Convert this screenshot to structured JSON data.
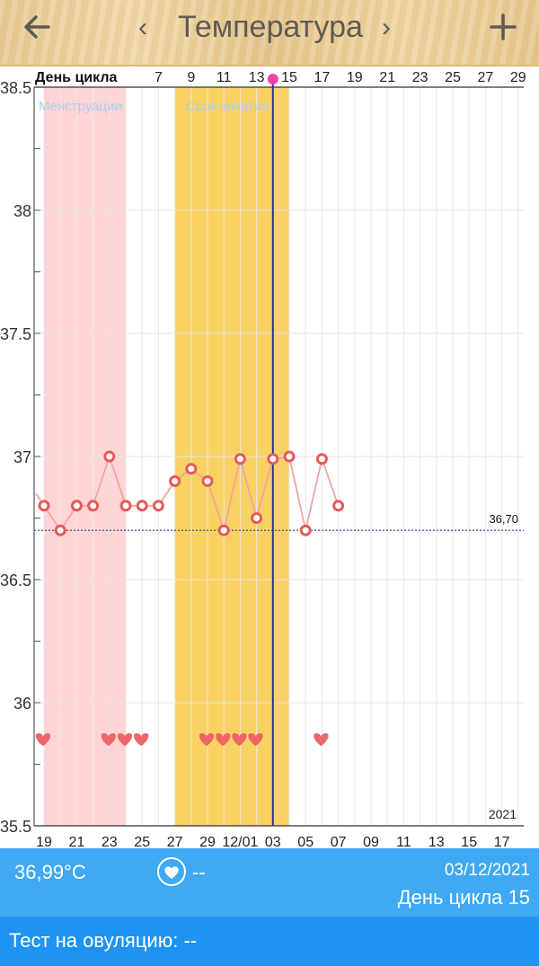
{
  "header": {
    "title": "Температура",
    "back_icon": "arrow-left-icon",
    "prev_icon": "chevron-left-icon",
    "next_icon": "chevron-right-icon",
    "add_icon": "plus-icon",
    "prev_glyph": "‹",
    "next_glyph": "›"
  },
  "colors": {
    "menstruation": "#ffd4d4",
    "fertile": "#fad264",
    "line": "#f0a5a5",
    "marker": "#e55a5a",
    "heart": "#ee6666",
    "cursor": "#2d2c9b",
    "cursor_dot": "#ee44aa",
    "info_bar": "#3fa9f3",
    "test_bar": "#1e93f1"
  },
  "chart_data": {
    "type": "line",
    "top_axis_title": "День цикла",
    "top_tick_labels": [
      "7",
      "9",
      "11",
      "13",
      "15",
      "17",
      "19",
      "21",
      "23",
      "25",
      "27",
      "29"
    ],
    "bottom_tick_labels": [
      "19",
      "21",
      "23",
      "25",
      "27",
      "29",
      "12/01",
      "03",
      "05",
      "07",
      "09",
      "11",
      "13",
      "15",
      "17"
    ],
    "ylim": [
      35.5,
      38.5
    ],
    "y_ticks": [
      "38.5",
      "38",
      "37.5",
      "37",
      "36.5",
      "36",
      "35.5"
    ],
    "xlim": [
      -0.5,
      29
    ],
    "series": [
      {
        "x": [
          -0.5,
          0,
          1,
          2,
          3,
          4,
          5,
          6,
          7,
          8,
          9,
          10,
          11,
          12,
          13,
          14,
          15,
          16,
          17,
          18
        ],
        "values": [
          36.85,
          36.8,
          36.7,
          36.8,
          36.8,
          37.0,
          36.8,
          36.8,
          36.8,
          36.9,
          36.95,
          36.9,
          36.7,
          36.99,
          36.75,
          36.99,
          37.0,
          36.7,
          36.99,
          36.8
        ],
        "marker_from_index": 1
      }
    ],
    "baseline": {
      "value": 36.7,
      "label": "36,70"
    },
    "bands": [
      {
        "label": "Менструации",
        "from": 0,
        "to": 5,
        "color": "#ffd4d4",
        "label_color": "#a9cff2"
      },
      {
        "label": "Срок зачатия",
        "from": 8,
        "to": 15,
        "color": "#fad264",
        "label_color": "#a9cff2"
      }
    ],
    "cursor_x": 14,
    "heart_days": [
      0,
      4,
      5,
      6,
      10,
      11,
      12,
      13,
      17
    ],
    "heart_value": 35.85,
    "year_label": "2021",
    "grid": true
  },
  "info": {
    "temp": "36,99°C",
    "heart_icon": "heart-icon",
    "heart_value": "--",
    "date": "03/12/2021",
    "cycle_day": "День цикла 15"
  },
  "test": {
    "label": "Тест на овуляцию: --"
  }
}
